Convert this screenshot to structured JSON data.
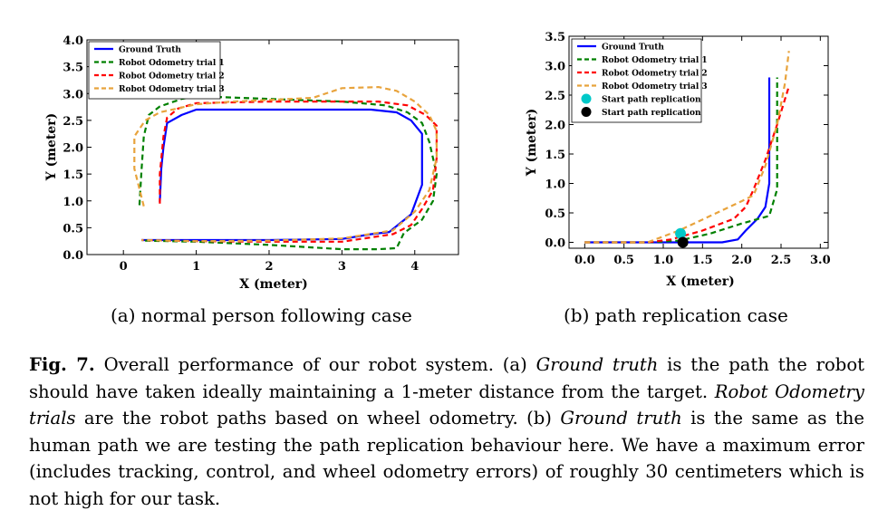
{
  "charts": [
    {
      "type": "line",
      "xlabel": "X (meter)",
      "ylabel": "Y (meter)",
      "xlim": [
        -0.5,
        4.6
      ],
      "ylim": [
        0.0,
        4.0
      ],
      "xticks": [
        0,
        1,
        2,
        3,
        4
      ],
      "yticks": [
        0.0,
        0.5,
        1.0,
        1.5,
        2.0,
        2.5,
        3.0,
        3.5,
        4.0
      ],
      "xtick_labels": [
        "0",
        "1",
        "2",
        "3",
        "4"
      ],
      "ytick_labels": [
        "0.0",
        "0.5",
        "1.0",
        "1.5",
        "2.0",
        "2.5",
        "3.0",
        "3.5",
        "4.0"
      ],
      "legend_position": "top-left",
      "series": [
        {
          "name": "Ground Truth",
          "color": "#0000ff",
          "dash": "solid",
          "points": [
            [
              0.5,
              0.98
            ],
            [
              0.52,
              1.6
            ],
            [
              0.55,
              2.0
            ],
            [
              0.6,
              2.45
            ],
            [
              0.8,
              2.6
            ],
            [
              1.0,
              2.7
            ],
            [
              2.0,
              2.7
            ],
            [
              3.0,
              2.7
            ],
            [
              3.4,
              2.7
            ],
            [
              3.75,
              2.65
            ],
            [
              3.95,
              2.5
            ],
            [
              4.1,
              2.25
            ],
            [
              4.1,
              1.3
            ],
            [
              3.95,
              0.75
            ],
            [
              3.65,
              0.42
            ],
            [
              3.4,
              0.38
            ],
            [
              3.0,
              0.29
            ],
            [
              2.0,
              0.27
            ],
            [
              1.0,
              0.27
            ],
            [
              0.25,
              0.27
            ]
          ]
        },
        {
          "name": "Robot Odometry trial 1",
          "color": "#008000",
          "dash": "dashed",
          "points": [
            [
              0.22,
              0.92
            ],
            [
              0.25,
              1.6
            ],
            [
              0.28,
              2.2
            ],
            [
              0.35,
              2.6
            ],
            [
              0.5,
              2.76
            ],
            [
              0.8,
              2.9
            ],
            [
              1.0,
              2.95
            ],
            [
              2.0,
              2.9
            ],
            [
              3.0,
              2.85
            ],
            [
              3.6,
              2.78
            ],
            [
              3.9,
              2.65
            ],
            [
              4.1,
              2.45
            ],
            [
              4.2,
              2.1
            ],
            [
              4.3,
              1.5
            ],
            [
              4.25,
              1.0
            ],
            [
              4.1,
              0.65
            ],
            [
              3.85,
              0.4
            ],
            [
              3.75,
              0.12
            ],
            [
              3.5,
              0.1
            ],
            [
              3.0,
              0.1
            ],
            [
              2.0,
              0.18
            ],
            [
              1.0,
              0.24
            ],
            [
              0.25,
              0.26
            ]
          ]
        },
        {
          "name": "Robot Odometry trial 2",
          "color": "#ff0000",
          "dash": "dashed",
          "points": [
            [
              0.5,
              0.95
            ],
            [
              0.5,
              1.5
            ],
            [
              0.55,
              2.2
            ],
            [
              0.6,
              2.55
            ],
            [
              0.75,
              2.72
            ],
            [
              1.0,
              2.82
            ],
            [
              2.0,
              2.85
            ],
            [
              3.0,
              2.85
            ],
            [
              3.5,
              2.85
            ],
            [
              3.9,
              2.78
            ],
            [
              4.15,
              2.6
            ],
            [
              4.3,
              2.4
            ],
            [
              4.3,
              1.8
            ],
            [
              4.25,
              1.2
            ],
            [
              4.1,
              0.85
            ],
            [
              3.95,
              0.55
            ],
            [
              3.7,
              0.38
            ],
            [
              3.0,
              0.24
            ],
            [
              2.0,
              0.24
            ],
            [
              1.0,
              0.25
            ],
            [
              0.25,
              0.27
            ]
          ]
        },
        {
          "name": "Robot Odometry trial 3",
          "color": "#e8a33c",
          "dash": "dashed",
          "points": [
            [
              0.28,
              0.9
            ],
            [
              0.15,
              1.6
            ],
            [
              0.15,
              2.2
            ],
            [
              0.3,
              2.5
            ],
            [
              0.5,
              2.65
            ],
            [
              1.0,
              2.8
            ],
            [
              1.5,
              2.85
            ],
            [
              2.0,
              2.88
            ],
            [
              2.6,
              2.92
            ],
            [
              3.0,
              3.1
            ],
            [
              3.5,
              3.12
            ],
            [
              3.75,
              3.05
            ],
            [
              4.0,
              2.85
            ],
            [
              4.2,
              2.6
            ],
            [
              4.3,
              2.3
            ],
            [
              4.3,
              1.8
            ],
            [
              4.2,
              1.2
            ],
            [
              4.0,
              0.8
            ],
            [
              3.7,
              0.45
            ],
            [
              3.0,
              0.3
            ],
            [
              2.0,
              0.26
            ],
            [
              1.0,
              0.25
            ],
            [
              0.25,
              0.27
            ]
          ]
        }
      ]
    },
    {
      "type": "line",
      "xlabel": "X (meter)",
      "ylabel": "Y (meter)",
      "xlim": [
        -0.2,
        3.1
      ],
      "ylim": [
        -0.1,
        3.5
      ],
      "xticks": [
        0.0,
        0.5,
        1.0,
        1.5,
        2.0,
        2.5,
        3.0
      ],
      "yticks": [
        0.0,
        0.5,
        1.0,
        1.5,
        2.0,
        2.5,
        3.0,
        3.5
      ],
      "xtick_labels": [
        "0.0",
        "0.5",
        "1.0",
        "1.5",
        "2.0",
        "2.5",
        "3.0"
      ],
      "ytick_labels": [
        "0.0",
        "0.5",
        "1.0",
        "1.5",
        "2.0",
        "2.5",
        "3.0",
        "3.5"
      ],
      "legend_position": "top-left",
      "series": [
        {
          "name": "Ground Truth",
          "color": "#0000ff",
          "dash": "solid",
          "points": [
            [
              0.0,
              0.0
            ],
            [
              0.5,
              0.0
            ],
            [
              1.0,
              0.0
            ],
            [
              1.5,
              0.0
            ],
            [
              1.75,
              0.0
            ],
            [
              1.95,
              0.05
            ],
            [
              2.05,
              0.2
            ],
            [
              2.2,
              0.4
            ],
            [
              2.3,
              0.6
            ],
            [
              2.35,
              1.0
            ],
            [
              2.35,
              2.0
            ],
            [
              2.35,
              2.8
            ]
          ]
        },
        {
          "name": "Robot Odometry trial 1",
          "color": "#008000",
          "dash": "dashed",
          "points": [
            [
              0.0,
              0.0
            ],
            [
              0.8,
              0.0
            ],
            [
              1.2,
              0.03
            ],
            [
              1.6,
              0.15
            ],
            [
              2.0,
              0.32
            ],
            [
              2.35,
              0.45
            ],
            [
              2.45,
              0.9
            ],
            [
              2.45,
              1.8
            ],
            [
              2.45,
              2.8
            ]
          ]
        },
        {
          "name": "Robot Odometry trial 2",
          "color": "#ff0000",
          "dash": "dashed",
          "points": [
            [
              0.0,
              0.0
            ],
            [
              0.8,
              0.0
            ],
            [
              1.1,
              0.05
            ],
            [
              1.5,
              0.2
            ],
            [
              1.9,
              0.4
            ],
            [
              2.05,
              0.6
            ],
            [
              2.15,
              0.9
            ],
            [
              2.3,
              1.4
            ],
            [
              2.45,
              2.0
            ],
            [
              2.6,
              2.65
            ]
          ]
        },
        {
          "name": "Robot Odometry trial 3",
          "color": "#e8a33c",
          "dash": "dashed",
          "points": [
            [
              0.0,
              0.0
            ],
            [
              0.8,
              0.0
            ],
            [
              1.2,
              0.2
            ],
            [
              1.6,
              0.45
            ],
            [
              2.0,
              0.7
            ],
            [
              2.15,
              0.8
            ],
            [
              2.3,
              1.3
            ],
            [
              2.45,
              2.0
            ],
            [
              2.55,
              2.7
            ],
            [
              2.6,
              3.25
            ]
          ]
        }
      ],
      "markers": [
        {
          "name": "Start path replication",
          "color": "#00c8c8",
          "x": 1.22,
          "y": 0.15
        },
        {
          "name": "Start path replication",
          "color": "#000000",
          "x": 1.25,
          "y": 0.0
        }
      ]
    }
  ],
  "subcaption_a": "(a) normal person following case",
  "subcaption_b": "(b) path replication case",
  "caption": {
    "fig_label": "Fig. 7.",
    "t1": " Overall performance of our robot system. (a) ",
    "i1": "Ground truth",
    "t2": " is the path the robot should have taken ideally maintaining a 1-meter distance from the target. ",
    "i2": "Robot Odometry trials",
    "t3": " are the robot paths based on wheel odometry. (b) ",
    "i3": "Ground truth",
    "t4": " is the same as the human path we are testing the path replication behaviour here. We have a maximum error (includes tracking, control, and wheel odometry errors) of roughly 30 centimeters which is not high for our task."
  }
}
